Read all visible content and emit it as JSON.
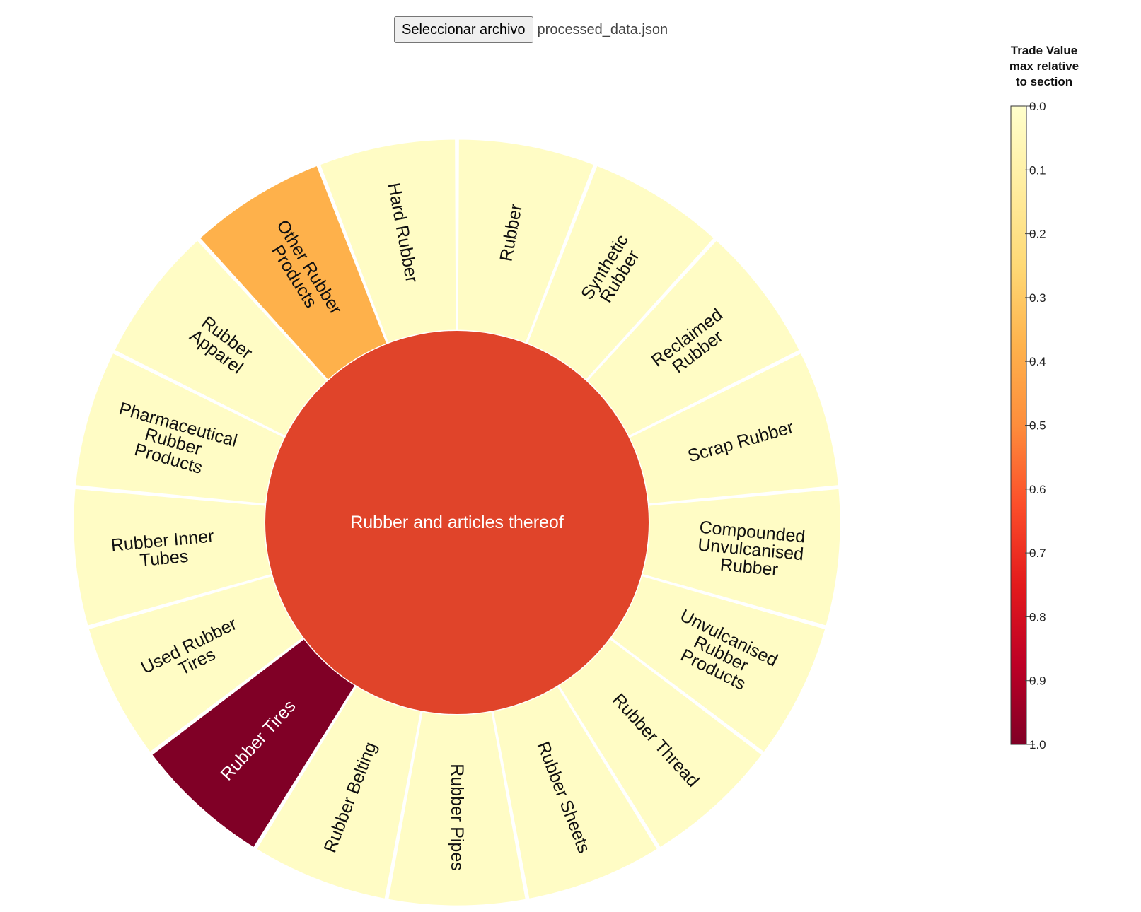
{
  "file_input": {
    "button_label": "Seleccionar archivo",
    "file_name": "processed_data.json"
  },
  "chart_data": {
    "type": "sunburst",
    "center": {
      "name": "Rubber and articles thereof",
      "value": 0.7,
      "color": "#e0442a"
    },
    "segments": [
      {
        "name": "Rubber",
        "lines": [
          "Rubber"
        ],
        "value": 0.02
      },
      {
        "name": "Synthetic Rubber",
        "lines": [
          "Synthetic",
          "Rubber"
        ],
        "value": 0.02
      },
      {
        "name": "Reclaimed Rubber",
        "lines": [
          "Reclaimed",
          "Rubber"
        ],
        "value": 0.02
      },
      {
        "name": "Scrap Rubber",
        "lines": [
          "Scrap Rubber"
        ],
        "value": 0.02
      },
      {
        "name": "Compounded Unvulcanised Rubber",
        "lines": [
          "Compounded",
          "Unvulcanised",
          "Rubber"
        ],
        "value": 0.02
      },
      {
        "name": "Unvulcanised Rubber Products",
        "lines": [
          "Unvulcanised",
          "Rubber",
          "Products"
        ],
        "value": 0.02
      },
      {
        "name": "Rubber Thread",
        "lines": [
          "Rubber Thread"
        ],
        "value": 0.02
      },
      {
        "name": "Rubber Sheets",
        "lines": [
          "Rubber Sheets"
        ],
        "value": 0.02
      },
      {
        "name": "Rubber Pipes",
        "lines": [
          "Rubber Pipes"
        ],
        "value": 0.02
      },
      {
        "name": "Rubber Belting",
        "lines": [
          "Rubber Belting"
        ],
        "value": 0.02
      },
      {
        "name": "Rubber Tires",
        "lines": [
          "Rubber Tires"
        ],
        "value": 1.0
      },
      {
        "name": "Used Rubber Tires",
        "lines": [
          "Used Rubber",
          "Tires"
        ],
        "value": 0.02
      },
      {
        "name": "Rubber Inner Tubes",
        "lines": [
          "Rubber Inner",
          "Tubes"
        ],
        "value": 0.02
      },
      {
        "name": "Pharmaceutical Rubber Products",
        "lines": [
          "Pharmaceutical",
          "Rubber",
          "Products"
        ],
        "value": 0.02
      },
      {
        "name": "Rubber Apparel",
        "lines": [
          "Rubber",
          "Apparel"
        ],
        "value": 0.02
      },
      {
        "name": "Other Rubber Products",
        "lines": [
          "Other Rubber",
          "Products"
        ],
        "value": 0.38
      },
      {
        "name": "Hard Rubber",
        "lines": [
          "Hard Rubber"
        ],
        "value": 0.02
      }
    ],
    "colorbar": {
      "title_lines": [
        "Trade Value",
        "max relative",
        "to section"
      ],
      "ticks": [
        "0.0",
        "0.1",
        "0.2",
        "0.3",
        "0.4",
        "0.5",
        "0.6",
        "0.7",
        "0.8",
        "0.9",
        "1.0"
      ],
      "range": [
        0,
        1
      ],
      "colors": [
        "#ffffcc",
        "#ffeda0",
        "#fed976",
        "#feb24c",
        "#fd8d3c",
        "#fc4e2a",
        "#e31a1c",
        "#bd0026",
        "#800026"
      ]
    }
  }
}
